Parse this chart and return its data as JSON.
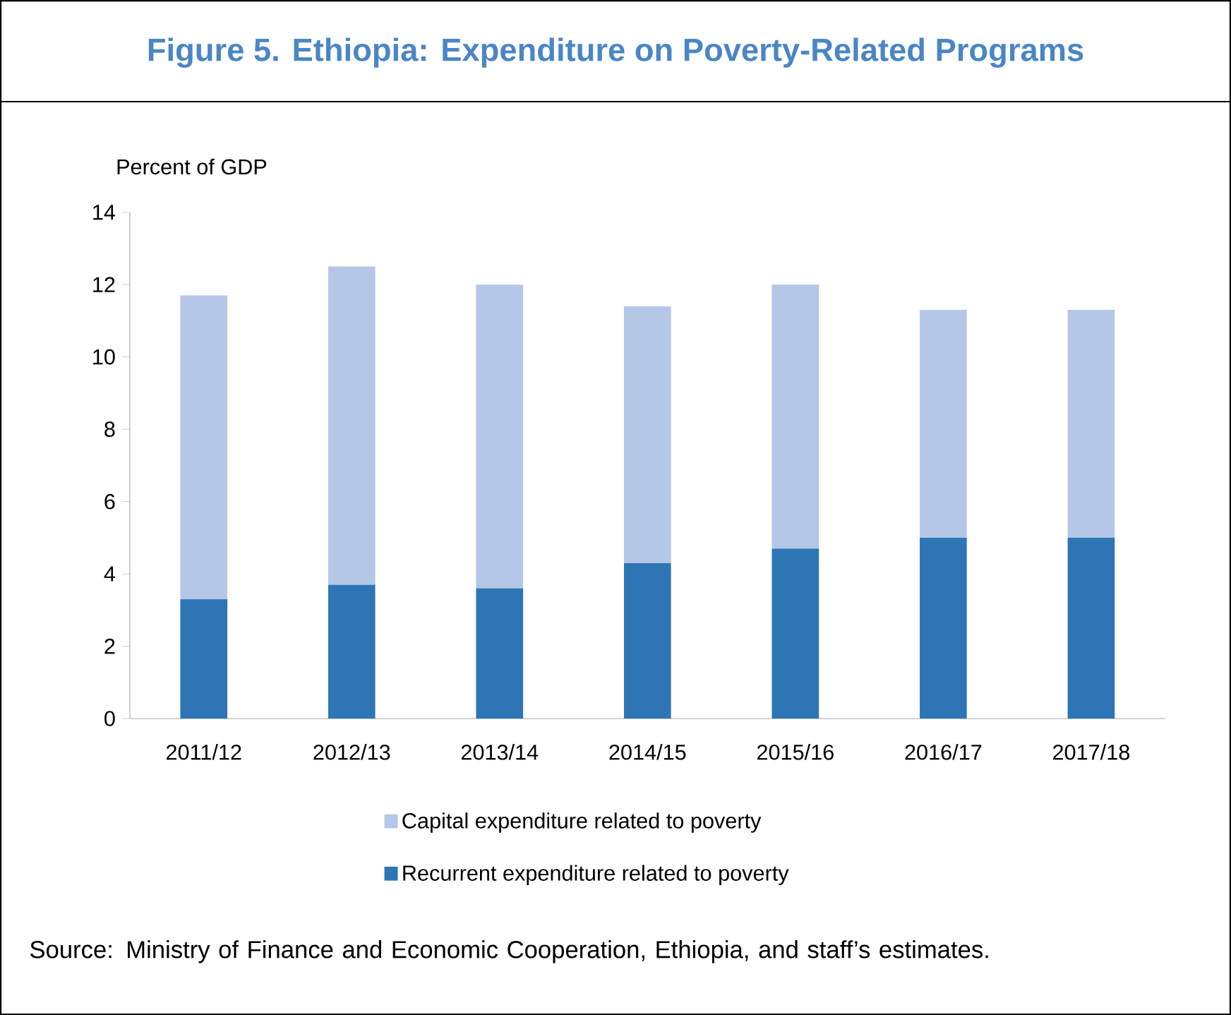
{
  "chart_data": {
    "type": "bar",
    "title": "Figure 5. Ethiopia: Expenditure on Poverty-Related Programs",
    "ylabel": "Percent of GDP",
    "categories": [
      "2011/12",
      "2012/13",
      "2013/14",
      "2014/15",
      "2015/16",
      "2016/17",
      "2017/18"
    ],
    "stacked": true,
    "series": [
      {
        "name": "Recurrent expenditure related to poverty",
        "color": "#2e75b6",
        "values": [
          3.3,
          3.7,
          3.6,
          4.3,
          4.7,
          5.0,
          5.0
        ]
      },
      {
        "name": "Capital expenditure related to poverty",
        "color": "#b4c7e7",
        "values": [
          8.4,
          8.8,
          8.4,
          7.1,
          7.3,
          6.3,
          6.3
        ]
      }
    ],
    "ylim": [
      0,
      14
    ],
    "yticks": [
      0,
      2,
      4,
      6,
      8,
      10,
      12,
      14
    ],
    "legend": "bottom",
    "annotations": [
      "Source: Ministry of Finance and Economic Cooperation, Ethiopia, and staff’s estimates."
    ]
  }
}
